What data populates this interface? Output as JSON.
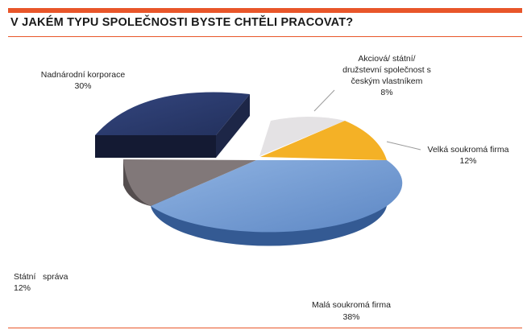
{
  "title": "V JAKÉM TYPU SPOLEČNOSTI BYSTE CHTĚLI PRACOVAT?",
  "chart_data": {
    "type": "pie",
    "style": "3d-exploded",
    "title": "V JAKÉM TYPU SPOLEČNOSTI BYSTE CHTĚLI PRACOVAT?",
    "slices": [
      {
        "name": "Malá soukromá firma",
        "value": 38,
        "label": "38%",
        "color": "#6f98d0"
      },
      {
        "name": "Státní správa",
        "value": 12,
        "label": "12%",
        "color": "#7a7273"
      },
      {
        "name": "Nadnárodní korporace",
        "value": 30,
        "label": "30%",
        "color": "#2c3b6e"
      },
      {
        "name": "Akciová/ státní/ družstevní společnost s českým vlastníkem",
        "value": 8,
        "label": "8%",
        "color": "#e2e0e2"
      },
      {
        "name": "Velká soukromá firma",
        "value": 12,
        "label": "12%",
        "color": "#f4b126"
      }
    ]
  },
  "labels": {
    "nadnarodni": {
      "name": "Nadnárodní korporace",
      "pct": "30%"
    },
    "akciova": {
      "line1": "Akciová/ státní/",
      "line2": "družstevní společnost s",
      "line3": "českým vlastníkem",
      "pct": "8%"
    },
    "velka": {
      "name": "Velká soukromá firma",
      "pct": "12%"
    },
    "statni": {
      "line1": "Státní",
      "line2": "správa",
      "pct": "12%"
    },
    "mala": {
      "name": "Malá soukromá firma",
      "pct": "38%"
    }
  }
}
